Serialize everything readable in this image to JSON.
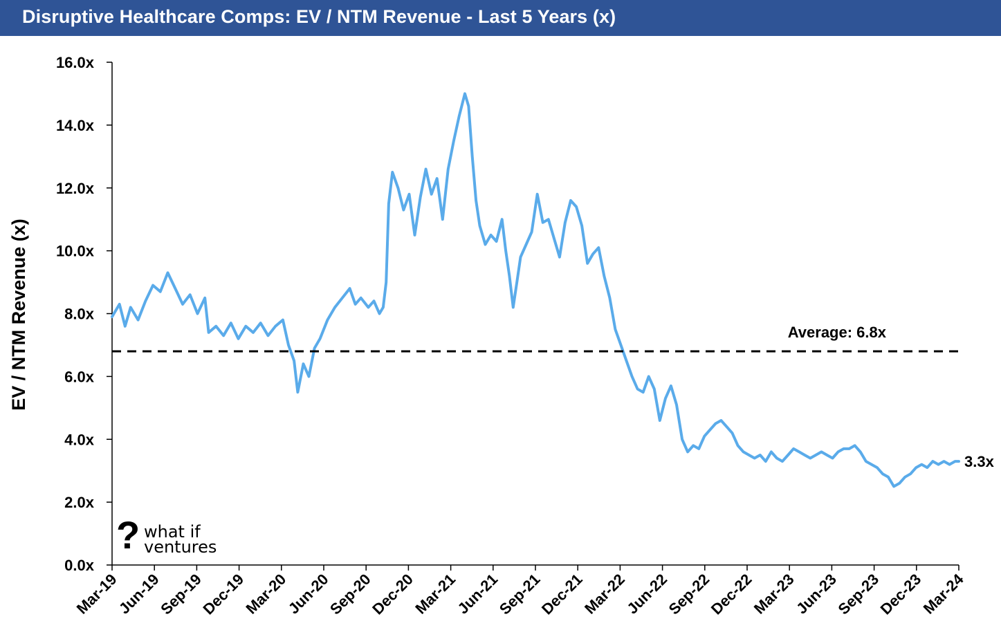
{
  "header": {
    "title": "Disruptive Healthcare Comps: EV / NTM Revenue - Last 5 Years (x)"
  },
  "logo": {
    "mark": "?",
    "line1": "what if",
    "line2": "ventures"
  },
  "colors": {
    "header_bg": "#2f5496",
    "series": "#5aabea",
    "average_line": "#000000"
  },
  "chart_data": {
    "type": "line",
    "title": "Disruptive Healthcare Comps: EV / NTM Revenue - Last 5 Years (x)",
    "ylabel": "EV / NTM Revenue (x)",
    "xlabel": "",
    "ylim": [
      0,
      16
    ],
    "yticks": [
      "0.0x",
      "2.0x",
      "4.0x",
      "6.0x",
      "8.0x",
      "10.0x",
      "12.0x",
      "14.0x",
      "16.0x"
    ],
    "xticks": [
      "Mar-19",
      "Jun-19",
      "Sep-19",
      "Dec-19",
      "Mar-20",
      "Jun-20",
      "Sep-20",
      "Dec-20",
      "Mar-21",
      "Jun-21",
      "Sep-21",
      "Dec-21",
      "Mar-22",
      "Jun-22",
      "Sep-22",
      "Dec-22",
      "Mar-23",
      "Jun-23",
      "Sep-23",
      "Dec-23",
      "Mar-24"
    ],
    "grid": false,
    "average": {
      "value": 6.8,
      "label": "Average: 6.8x"
    },
    "end_label": "3.3x",
    "series": [
      {
        "values": [
          [
            0,
            7.9
          ],
          [
            0.2,
            8.3
          ],
          [
            0.35,
            7.6
          ],
          [
            0.5,
            8.2
          ],
          [
            0.7,
            7.8
          ],
          [
            0.9,
            8.4
          ],
          [
            1.1,
            8.9
          ],
          [
            1.3,
            8.7
          ],
          [
            1.5,
            9.3
          ],
          [
            1.7,
            8.8
          ],
          [
            1.9,
            8.3
          ],
          [
            2.1,
            8.6
          ],
          [
            2.3,
            8.0
          ],
          [
            2.5,
            8.5
          ],
          [
            2.6,
            7.4
          ],
          [
            2.8,
            7.6
          ],
          [
            3.0,
            7.3
          ],
          [
            3.2,
            7.7
          ],
          [
            3.4,
            7.2
          ],
          [
            3.6,
            7.6
          ],
          [
            3.8,
            7.4
          ],
          [
            4.0,
            7.7
          ],
          [
            4.2,
            7.3
          ],
          [
            4.4,
            7.6
          ],
          [
            4.6,
            7.8
          ],
          [
            4.75,
            7.0
          ],
          [
            4.9,
            6.5
          ],
          [
            5.0,
            5.5
          ],
          [
            5.15,
            6.4
          ],
          [
            5.3,
            6.0
          ],
          [
            5.45,
            6.9
          ],
          [
            5.6,
            7.2
          ],
          [
            5.8,
            7.8
          ],
          [
            6.0,
            8.2
          ],
          [
            6.2,
            8.5
          ],
          [
            6.4,
            8.8
          ],
          [
            6.55,
            8.3
          ],
          [
            6.7,
            8.5
          ],
          [
            6.9,
            8.2
          ],
          [
            7.05,
            8.4
          ],
          [
            7.2,
            8.0
          ],
          [
            7.3,
            8.2
          ],
          [
            7.38,
            9.0
          ],
          [
            7.45,
            11.5
          ],
          [
            7.55,
            12.5
          ],
          [
            7.7,
            12.0
          ],
          [
            7.85,
            11.3
          ],
          [
            8.0,
            11.8
          ],
          [
            8.15,
            10.5
          ],
          [
            8.3,
            11.7
          ],
          [
            8.45,
            12.6
          ],
          [
            8.6,
            11.8
          ],
          [
            8.75,
            12.3
          ],
          [
            8.9,
            11.0
          ],
          [
            9.05,
            12.6
          ],
          [
            9.2,
            13.5
          ],
          [
            9.35,
            14.3
          ],
          [
            9.5,
            15.0
          ],
          [
            9.6,
            14.6
          ],
          [
            9.7,
            13.0
          ],
          [
            9.8,
            11.6
          ],
          [
            9.9,
            10.8
          ],
          [
            10.05,
            10.2
          ],
          [
            10.2,
            10.5
          ],
          [
            10.35,
            10.3
          ],
          [
            10.5,
            11.0
          ],
          [
            10.6,
            10.0
          ],
          [
            10.7,
            9.2
          ],
          [
            10.8,
            8.2
          ],
          [
            10.9,
            9.0
          ],
          [
            11.0,
            9.8
          ],
          [
            11.15,
            10.2
          ],
          [
            11.3,
            10.6
          ],
          [
            11.45,
            11.8
          ],
          [
            11.6,
            10.9
          ],
          [
            11.75,
            11.0
          ],
          [
            11.9,
            10.4
          ],
          [
            12.05,
            9.8
          ],
          [
            12.2,
            10.9
          ],
          [
            12.35,
            11.6
          ],
          [
            12.5,
            11.4
          ],
          [
            12.65,
            10.8
          ],
          [
            12.8,
            9.6
          ],
          [
            12.95,
            9.9
          ],
          [
            13.1,
            10.1
          ],
          [
            13.25,
            9.2
          ],
          [
            13.4,
            8.5
          ],
          [
            13.55,
            7.5
          ],
          [
            13.7,
            7.0
          ],
          [
            13.85,
            6.5
          ],
          [
            14.0,
            6.0
          ],
          [
            14.15,
            5.6
          ],
          [
            14.3,
            5.5
          ],
          [
            14.45,
            6.0
          ],
          [
            14.6,
            5.6
          ],
          [
            14.75,
            4.6
          ],
          [
            14.9,
            5.3
          ],
          [
            15.05,
            5.7
          ],
          [
            15.2,
            5.1
          ],
          [
            15.35,
            4.0
          ],
          [
            15.5,
            3.6
          ],
          [
            15.65,
            3.8
          ],
          [
            15.8,
            3.7
          ],
          [
            15.95,
            4.1
          ],
          [
            16.1,
            4.3
          ],
          [
            16.25,
            4.5
          ],
          [
            16.4,
            4.6
          ],
          [
            16.55,
            4.4
          ],
          [
            16.7,
            4.2
          ],
          [
            16.85,
            3.8
          ],
          [
            17.0,
            3.6
          ],
          [
            17.15,
            3.5
          ],
          [
            17.3,
            3.4
          ],
          [
            17.45,
            3.5
          ],
          [
            17.6,
            3.3
          ],
          [
            17.75,
            3.6
          ],
          [
            17.9,
            3.4
          ],
          [
            18.05,
            3.3
          ],
          [
            18.2,
            3.5
          ],
          [
            18.35,
            3.7
          ],
          [
            18.5,
            3.6
          ],
          [
            18.65,
            3.5
          ],
          [
            18.8,
            3.4
          ],
          [
            18.95,
            3.5
          ],
          [
            19.1,
            3.6
          ],
          [
            19.25,
            3.5
          ],
          [
            19.4,
            3.4
          ],
          [
            19.55,
            3.6
          ],
          [
            19.7,
            3.7
          ],
          [
            19.85,
            3.7
          ],
          [
            20.0,
            3.8
          ],
          [
            20.15,
            3.6
          ],
          [
            20.3,
            3.3
          ],
          [
            20.45,
            3.2
          ],
          [
            20.6,
            3.1
          ],
          [
            20.75,
            2.9
          ],
          [
            20.9,
            2.8
          ],
          [
            21.05,
            2.5
          ],
          [
            21.2,
            2.6
          ],
          [
            21.35,
            2.8
          ],
          [
            21.5,
            2.9
          ],
          [
            21.65,
            3.1
          ],
          [
            21.8,
            3.2
          ],
          [
            21.95,
            3.1
          ],
          [
            22.1,
            3.3
          ],
          [
            22.25,
            3.2
          ],
          [
            22.4,
            3.3
          ],
          [
            22.55,
            3.2
          ],
          [
            22.7,
            3.3
          ],
          [
            22.8,
            3.3
          ]
        ]
      }
    ]
  }
}
